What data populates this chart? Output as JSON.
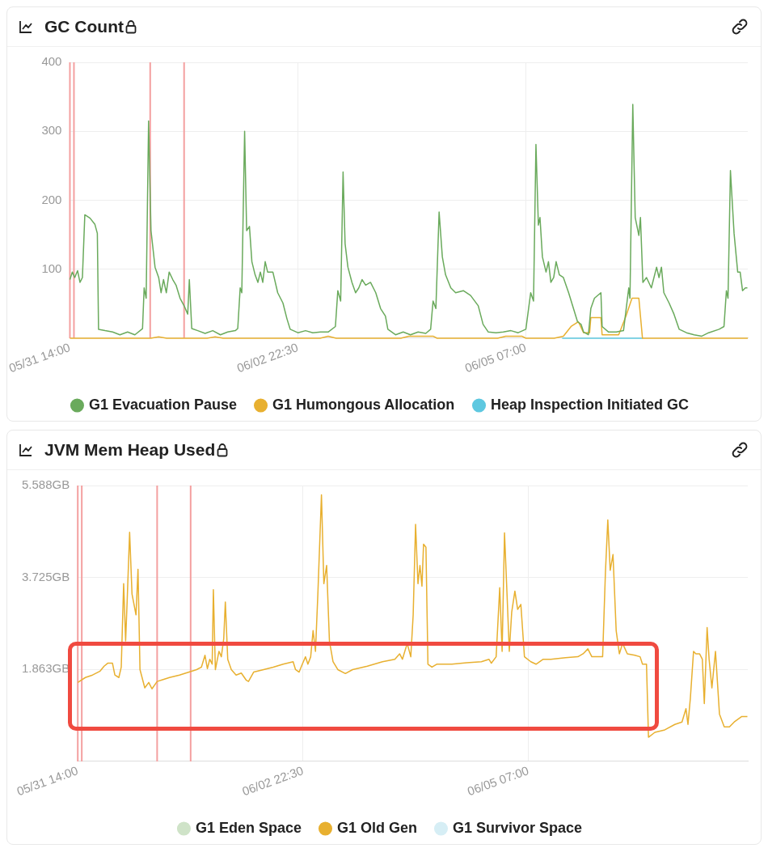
{
  "chart_data": [
    {
      "type": "line",
      "title": "GC Count",
      "xlim": [
        "--05-31T14:00",
        "--06-07T14:00"
      ],
      "xticks": [
        {
          "value": "--05-31T14:00",
          "label": "05/31 14:00"
        },
        {
          "value": "--06-02T22:30",
          "label": "06/02 22:30"
        },
        {
          "value": "--06-05T07:00",
          "label": "06/05 07:00"
        }
      ],
      "ylim": [
        0,
        400
      ],
      "yticks": [
        100,
        200,
        300,
        400
      ],
      "grid": true,
      "legend": "bottom",
      "marker": "none",
      "ref_lines": [
        {
          "axis": "x",
          "value": "--05-31T14:00",
          "color": "#f4a0a0"
        },
        {
          "axis": "x",
          "value": "--05-31T15:00",
          "color": "#f4a0a0"
        },
        {
          "axis": "x",
          "value": "--06-01T09:54",
          "color": "#f4a0a0"
        },
        {
          "axis": "x",
          "value": "--06-01T18:18",
          "color": "#f4a0a0"
        }
      ],
      "series": [
        {
          "name": "G1 Evacuation Pause",
          "color": "#6aaa5c",
          "x": [
            "--05-31T14:00",
            "--05-31T14:36",
            "--05-31T15:12",
            "--05-31T15:54",
            "--05-31T16:30",
            "--05-31T17:06",
            "--05-31T17:42",
            "--05-31T19:00",
            "--05-31T20:12",
            "--05-31T20:48",
            "--05-31T21:06",
            "--05-31T22:42",
            "--06-01T00:36",
            "--06-01T02:24",
            "--06-01T04:18",
            "--06-01T06:06",
            "--06-01T08:00",
            "--06-01T08:24",
            "--06-01T08:54",
            "--06-01T09:30",
            "--06-01T10:06",
            "--06-01T11:06",
            "--06-01T12:00",
            "--06-01T12:36",
            "--06-01T13:12",
            "--06-01T13:54",
            "--06-01T14:36",
            "--06-01T15:30",
            "--06-01T16:18",
            "--06-01T17:18",
            "--06-01T18:18",
            "--06-01T19:12",
            "--06-01T19:36",
            "--06-01T20:12",
            "--06-01T21:42",
            "--06-01T23:30",
            "--06-02T01:24",
            "--06-02T03:18",
            "--06-02T05:06",
            "--06-02T07:00",
            "--06-02T07:36",
            "--06-02T08:12",
            "--06-02T08:36",
            "--06-02T09:18",
            "--06-02T09:48",
            "--06-02T10:30",
            "--06-02T11:06",
            "--06-02T11:54",
            "--06-02T12:36",
            "--06-02T13:12",
            "--06-02T13:48",
            "--06-02T14:24",
            "--06-02T15:00",
            "--06-02T16:18",
            "--06-02T17:30",
            "--06-02T18:48",
            "--06-02T19:48",
            "--06-02T20:36",
            "--06-02T22:30",
            "--06-03T00:24",
            "--06-03T02:12",
            "--06-03T04:06",
            "--06-03T06:00",
            "--06-03T07:48",
            "--06-03T08:24",
            "--06-03T09:06",
            "--06-03T09:42",
            "--06-03T10:12",
            "--06-03T10:54",
            "--06-03T11:54",
            "--06-03T12:48",
            "--06-03T13:36",
            "--06-03T14:24",
            "--06-03T15:18",
            "--06-03T16:30",
            "--06-03T17:48",
            "--06-03T19:00",
            "--06-03T20:12",
            "--06-03T20:48",
            "--06-03T22:42",
            "--06-04T00:36",
            "--06-04T02:24",
            "--06-04T04:18",
            "--06-04T06:12",
            "--06-04T07:24",
            "--06-04T08:00",
            "--06-04T08:42",
            "--06-04T09:30",
            "--06-04T10:18",
            "--06-04T11:06",
            "--06-04T12:24",
            "--06-04T13:36",
            "--06-04T15:30",
            "--06-04T17:18",
            "--06-04T19:12",
            "--06-04T20:24",
            "--06-04T21:42",
            "--06-04T23:36",
            "--06-05T01:24",
            "--06-05T03:18",
            "--06-05T05:06",
            "--06-05T07:00",
            "--06-05T08:12",
            "--06-05T08:54",
            "--06-05T09:30",
            "--06-05T10:06",
            "--06-05T10:30",
            "--06-05T11:06",
            "--06-05T12:00",
            "--06-05T12:36",
            "--06-05T13:12",
            "--06-05T13:54",
            "--06-05T14:30",
            "--06-05T15:18",
            "--06-05T16:18",
            "--06-05T17:36",
            "--06-05T18:48",
            "--06-05T19:48",
            "--06-05T20:42",
            "--06-05T21:18",
            "--06-05T22:30",
            "--06-05T23:06",
            "--06-06T00:00",
            "--06-06T01:36",
            "--06-06T01:54",
            "--06-06T03:30",
            "--06-06T05:24",
            "--06-06T07:12",
            "--06-06T08:30",
            "--06-06T08:48",
            "--06-06T09:30",
            "--06-06T10:06",
            "--06-06T11:00",
            "--06-06T11:24",
            "--06-06T12:00",
            "--06-06T12:54",
            "--06-06T14:06",
            "--06-06T15:24",
            "--06-06T16:00",
            "--06-06T16:36",
            "--06-06T17:12",
            "--06-06T18:30",
            "--06-06T19:42",
            "--06-06T21:00",
            "--06-06T22:48",
            "--06-07T00:42",
            "--06-07T02:36",
            "--06-07T04:18",
            "--06-07T06:54",
            "--06-07T08:06",
            "--06-07T08:42",
            "--06-07T09:06",
            "--06-07T09:42",
            "--06-07T10:36",
            "--06-07T11:30",
            "--06-07T12:06",
            "--06-07T12:42",
            "--06-07T13:24",
            "--06-07T13:54"
          ],
          "values": [
            85,
            96,
            88,
            98,
            81,
            88,
            179,
            174,
            165,
            152,
            13,
            11,
            9,
            5,
            9,
            5,
            14,
            73,
            58,
            315,
            156,
            103,
            88,
            66,
            85,
            66,
            96,
            85,
            77,
            58,
            47,
            35,
            85,
            14,
            11,
            7,
            11,
            5,
            9,
            11,
            14,
            73,
            66,
            300,
            156,
            162,
            111,
            92,
            81,
            96,
            81,
            111,
            96,
            96,
            66,
            51,
            28,
            13,
            8,
            11,
            8,
            9,
            9,
            17,
            69,
            54,
            241,
            137,
            103,
            81,
            66,
            73,
            85,
            77,
            81,
            66,
            43,
            32,
            13,
            5,
            9,
            5,
            9,
            7,
            13,
            54,
            43,
            183,
            118,
            92,
            73,
            66,
            69,
            62,
            47,
            20,
            9,
            8,
            9,
            11,
            8,
            13,
            66,
            54,
            281,
            164,
            175,
            118,
            96,
            111,
            81,
            88,
            111,
            92,
            88,
            66,
            43,
            24,
            20,
            9,
            5,
            43,
            58,
            66,
            17,
            9,
            9,
            11,
            73,
            58,
            339,
            175,
            149,
            175,
            81,
            88,
            73,
            103,
            88,
            103,
            66,
            51,
            35,
            13,
            8,
            5,
            3,
            8,
            13,
            17,
            69,
            58,
            243,
            152,
            96,
            96,
            69,
            73,
            73
          ]
        },
        {
          "name": "G1 Humongous Allocation",
          "color": "#e8b030",
          "x": [
            "--05-31T14:00",
            "--06-01T10:00",
            "--06-01T12:00",
            "--06-01T14:00",
            "--06-02T00:00",
            "--06-02T02:00",
            "--06-02T04:00",
            "--06-03T04:00",
            "--06-03T06:00",
            "--06-03T08:00",
            "--06-04T00:00",
            "--06-04T02:00",
            "--06-04T08:00",
            "--06-04T09:00",
            "--06-05T00:00",
            "--06-05T02:00",
            "--06-05T06:00",
            "--06-05T07:00",
            "--06-05T14:00",
            "--06-05T16:18",
            "--06-05T18:12",
            "--06-05T20:00",
            "--06-05T21:18",
            "--06-05T22:48",
            "--06-05T23:06",
            "--06-06T01:36",
            "--06-06T01:54",
            "--06-06T06:00",
            "--06-06T07:48",
            "--06-06T09:18",
            "--06-06T11:00",
            "--06-06T11:54",
            "--06-07T14:00"
          ],
          "values": [
            0,
            0,
            2,
            0,
            0,
            2,
            0,
            0,
            3,
            0,
            0,
            3,
            3,
            0,
            0,
            3,
            3,
            0,
            0,
            3,
            17,
            24,
            8,
            8,
            30,
            30,
            5,
            5,
            32,
            58,
            58,
            0,
            0
          ]
        },
        {
          "name": "Heap Inspection Initiated GC",
          "color": "#5ec8e0",
          "x": [
            "--06-05T16:00",
            "--06-06T12:00"
          ],
          "values": [
            0,
            0
          ]
        }
      ]
    },
    {
      "type": "line",
      "title": "JVM Mem Heap Used",
      "xlim": [
        "--05-31T14:00",
        "--06-07T14:00"
      ],
      "xticks": [
        {
          "value": "--05-31T14:00",
          "label": "05/31 14:00"
        },
        {
          "value": "--06-02T22:30",
          "label": "06/02 22:30"
        },
        {
          "value": "--06-05T07:00",
          "label": "06/05 07:00"
        }
      ],
      "ylim": [
        0,
        5.588
      ],
      "yticks": [
        {
          "value": 1.863,
          "label": "1.863GB"
        },
        {
          "value": 3.725,
          "label": "3.725GB"
        },
        {
          "value": 5.588,
          "label": "5.588GB"
        }
      ],
      "grid": true,
      "legend": "bottom",
      "marker": "none",
      "ref_lines": [
        {
          "axis": "x",
          "value": "--05-31T14:00",
          "color": "#f4a0a0"
        },
        {
          "axis": "x",
          "value": "--05-31T15:00",
          "color": "#f4a0a0"
        },
        {
          "axis": "x",
          "value": "--06-01T09:54",
          "color": "#f4a0a0"
        },
        {
          "axis": "x",
          "value": "--06-01T18:18",
          "color": "#f4a0a0"
        }
      ],
      "series": [
        {
          "name": "G1 Eden Space",
          "color": "#cfe3c8"
        },
        {
          "name": "G1 Old Gen",
          "color": "#e8b030",
          "x": [
            "--05-31T14:00",
            "--05-31T15:54",
            "--05-31T17:42",
            "--05-31T19:36",
            "--05-31T20:36",
            "--05-31T21:30",
            "--05-31T22:42",
            "--05-31T23:18",
            "--06-01T00:18",
            "--06-01T00:54",
            "--06-01T01:30",
            "--06-01T02:00",
            "--06-01T02:24",
            "--06-01T03:00",
            "--06-01T03:36",
            "--06-01T04:36",
            "--06-01T05:06",
            "--06-01T05:36",
            "--06-01T06:48",
            "--06-01T07:48",
            "--06-01T08:36",
            "--06-01T09:54",
            "--06-01T11:06",
            "--06-01T13:00",
            "--06-01T15:30",
            "--06-01T17:54",
            "--06-01T19:48",
            "--06-01T21:00",
            "--06-01T21:54",
            "--06-01T22:30",
            "--06-01T23:06",
            "--06-01T23:42",
            "--06-02T00:00",
            "--06-02T00:30",
            "--06-02T01:24",
            "--06-02T02:00",
            "--06-02T02:36",
            "--06-02T03:00",
            "--06-02T03:36",
            "--06-02T04:30",
            "--06-02T05:42",
            "--06-02T07:00",
            "--06-02T08:12",
            "--06-02T08:48",
            "--06-02T10:06",
            "--06-02T12:36",
            "--06-02T15:00",
            "--06-02T17:30",
            "--06-02T20:00",
            "--06-02T20:36",
            "--06-02T21:30",
            "--06-02T22:18",
            "--06-02T23:06",
            "--06-02T23:42",
            "--06-03T00:24",
            "--06-03T01:00",
            "--06-03T01:36",
            "--06-03T02:12",
            "--06-03T03:06",
            "--06-03T03:42",
            "--06-03T04:24",
            "--06-03T05:06",
            "--06-03T06:00",
            "--06-03T07:12",
            "--06-03T09:06",
            "--06-03T10:54",
            "--06-03T14:36",
            "--06-03T18:24",
            "--06-03T21:30",
            "--06-03T22:42",
            "--06-03T23:24",
            "--06-04T00:36",
            "--06-04T01:30",
            "--06-04T02:06",
            "--06-04T02:42",
            "--06-04T03:18",
            "--06-04T03:48",
            "--06-04T04:18",
            "--06-04T04:42",
            "--06-04T05:18",
            "--06-04T05:48",
            "--06-04T06:48",
            "--06-04T08:00",
            "--06-04T11:48",
            "--06-04T15:30",
            "--06-04T19:12",
            "--06-04T21:06",
            "--06-04T21:42",
            "--06-04T22:54",
            "--06-04T23:48",
            "--06-05T00:24",
            "--06-05T01:00",
            "--06-05T01:36",
            "--06-05T02:12",
            "--06-05T02:48",
            "--06-05T03:36",
            "--06-05T04:18",
            "--06-05T05:06",
            "--06-05T06:00",
            "--06-05T07:36",
            "--06-05T08:54",
            "--06-05T10:42",
            "--06-05T12:36",
            "--06-05T16:18",
            "--06-05T19:24",
            "--06-05T20:42",
            "--06-05T21:54",
            "--06-05T22:54",
            "--06-06T01:36",
            "--06-06T02:18",
            "--06-06T02:54",
            "--06-06T03:30",
            "--06-06T04:12",
            "--06-06T05:00",
            "--06-06T05:48",
            "--06-06T06:36",
            "--06-06T07:48",
            "--06-06T09:42",
            "--06-06T11:00",
            "--06-06T11:36",
            "--06-06T12:36",
            "--06-06T13:06",
            "--06-06T14:42",
            "--06-06T17:12",
            "--06-06T19:42",
            "--06-06T21:30",
            "--06-06T22:30",
            "--06-06T23:00",
            "--06-06T23:36",
            "--06-07T00:24",
            "--06-07T01:00",
            "--06-07T01:54",
            "--06-07T02:36",
            "--06-07T03:06",
            "--06-07T03:48",
            "--06-07T04:18",
            "--06-07T05:00",
            "--06-07T05:54",
            "--06-07T06:54",
            "--06-07T08:06",
            "--06-07T09:24",
            "--06-07T10:36",
            "--06-07T12:30",
            "--06-07T13:54"
          ],
          "values": [
            1.6,
            1.7,
            1.75,
            1.83,
            1.93,
            1.99,
            1.99,
            1.75,
            1.7,
            1.91,
            3.6,
            2.44,
            3.29,
            4.64,
            3.39,
            2.97,
            3.89,
            1.86,
            1.49,
            1.6,
            1.47,
            1.62,
            1.65,
            1.7,
            1.75,
            1.81,
            1.86,
            1.91,
            2.15,
            1.88,
            2.07,
            1.97,
            3.48,
            1.86,
            2.23,
            2.12,
            2.49,
            3.23,
            2.07,
            1.86,
            1.75,
            1.79,
            1.65,
            1.62,
            1.81,
            1.86,
            1.91,
            1.97,
            2.02,
            1.86,
            1.81,
            1.97,
            2.12,
            1.97,
            2.12,
            2.65,
            2.23,
            3.39,
            5.4,
            3.6,
            3.97,
            2.44,
            2.02,
            1.86,
            1.78,
            1.86,
            1.93,
            2.02,
            2.07,
            2.18,
            2.07,
            2.39,
            2.12,
            2.97,
            4.8,
            3.6,
            3.97,
            3.55,
            4.4,
            4.34,
            1.97,
            1.91,
            1.97,
            1.97,
            2,
            2.02,
            2.07,
            1.99,
            2.12,
            3.52,
            2.23,
            4.63,
            3.45,
            2.23,
            3.02,
            3.45,
            3.08,
            3.18,
            2.12,
            2.02,
            1.97,
            2.07,
            2.07,
            2.1,
            2.12,
            2.18,
            2.28,
            2.12,
            2.12,
            3.82,
            4.89,
            3.87,
            4.19,
            2.65,
            2.18,
            2.39,
            2.18,
            2.15,
            2.12,
            1.97,
            1.97,
            0.49,
            0.59,
            0.64,
            0.75,
            0.8,
            1.07,
            0.75,
            1.28,
            2.23,
            2.18,
            2.18,
            2.07,
            1.17,
            2.71,
            2.07,
            1.49,
            2.23,
            0.96,
            0.7,
            0.7,
            0.8,
            0.91,
            0.91
          ]
        },
        {
          "name": "G1 Survivor Space",
          "color": "#d6eef5"
        }
      ]
    }
  ]
}
